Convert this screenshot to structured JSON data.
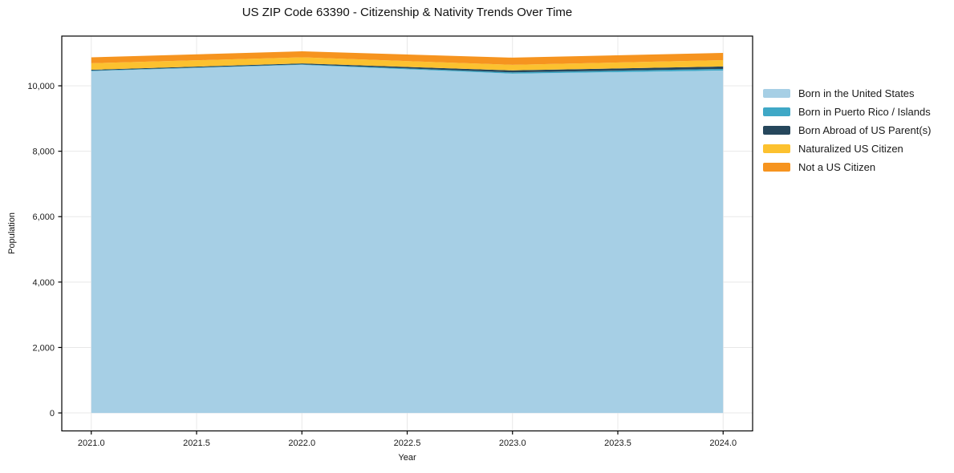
{
  "chart_data": {
    "type": "area",
    "stacked": true,
    "title": "US ZIP Code 63390 - Citizenship & Nativity Trends Over Time",
    "xlabel": "Year",
    "ylabel": "Population",
    "x": [
      2021,
      2022,
      2023,
      2024
    ],
    "series": [
      {
        "name": "Born in the United States",
        "color": "#a6cfe5",
        "values": [
          10450,
          10640,
          10370,
          10465
        ]
      },
      {
        "name": "Born in Puerto Rico / Islands",
        "color": "#3fa8c6",
        "values": [
          15,
          15,
          40,
          50
        ]
      },
      {
        "name": "Born Abroad of US Parent(s)",
        "color": "#26475c",
        "values": [
          25,
          30,
          60,
          75
        ]
      },
      {
        "name": "Naturalized US Citizen",
        "color": "#fcc12f",
        "values": [
          200,
          185,
          170,
          195
        ]
      },
      {
        "name": "Not a US Citizen",
        "color": "#f6941f",
        "values": [
          180,
          185,
          220,
          220
        ]
      }
    ],
    "totals": [
      10870,
      11055,
      10860,
      11005
    ],
    "xticks": {
      "values": [
        2021.0,
        2021.5,
        2022.0,
        2022.5,
        2023.0,
        2023.5,
        2024.0
      ],
      "labels": [
        "2021.0",
        "2021.5",
        "2022.0",
        "2022.5",
        "2023.0",
        "2023.5",
        "2024.0"
      ]
    },
    "yticks": {
      "values": [
        0,
        2000,
        4000,
        6000,
        8000,
        10000
      ],
      "labels": [
        "0",
        "2,000",
        "4,000",
        "6,000",
        "8,000",
        "10,000"
      ]
    },
    "xlim": [
      2020.86,
      2024.14
    ],
    "ylim": [
      -550,
      11520
    ],
    "grid": true,
    "grid_color": "#e8e8e8",
    "frame_color": "#000000",
    "text_color": "#1a1a1a",
    "legend_position": "right-outside"
  }
}
